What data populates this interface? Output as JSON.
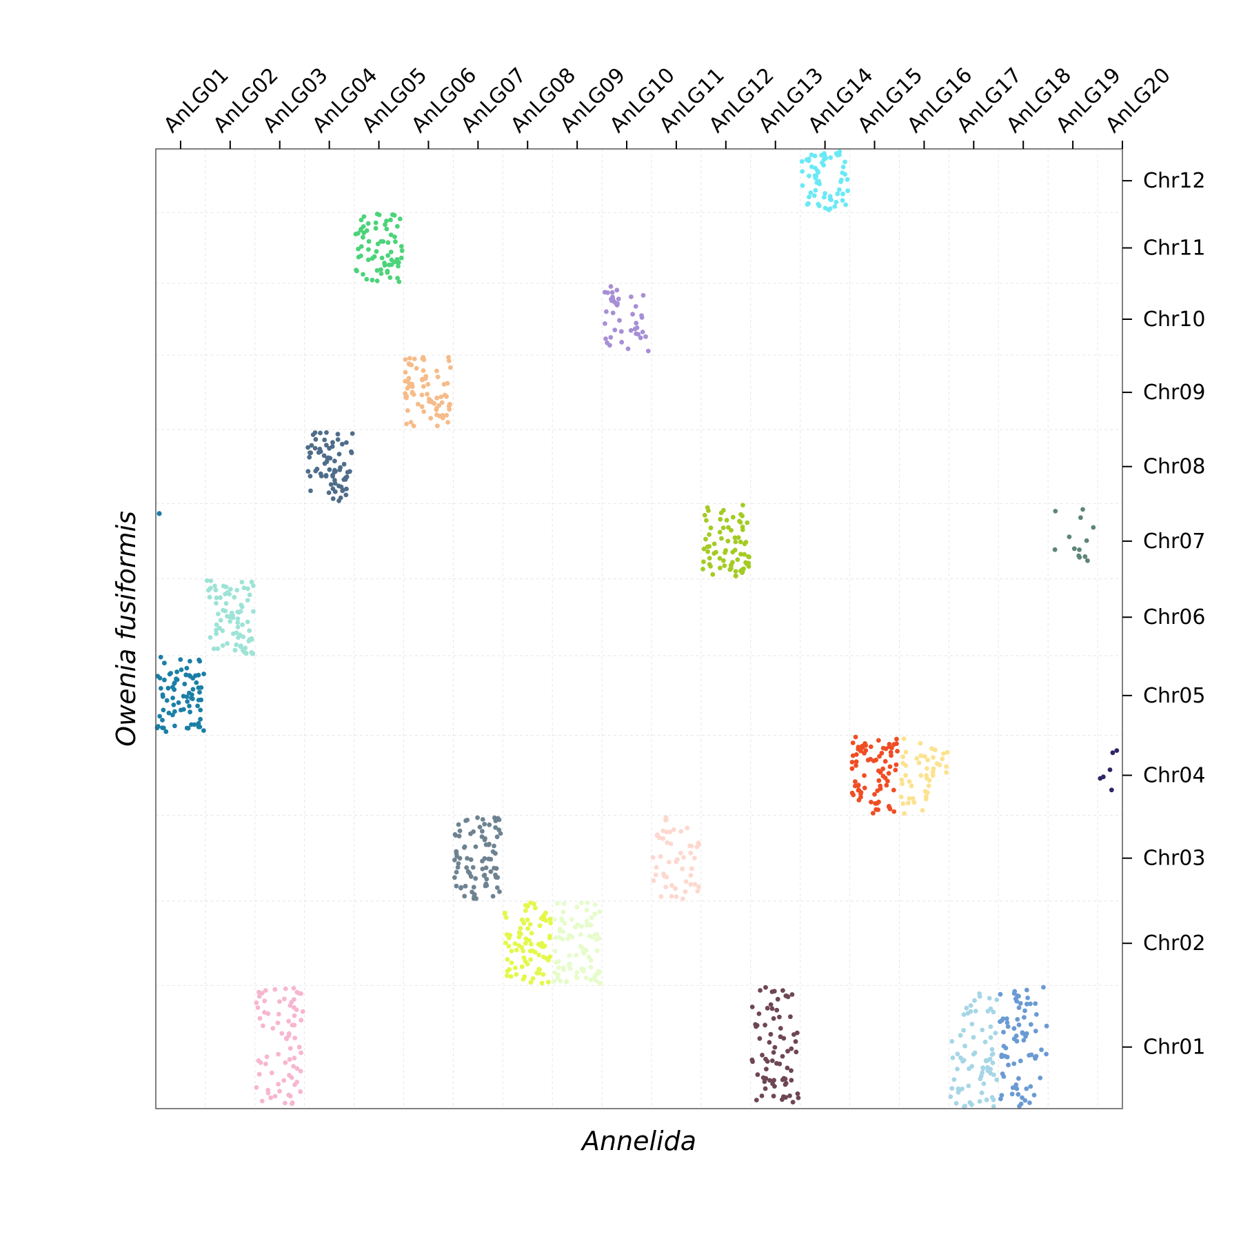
{
  "chart_data": {
    "type": "scatter",
    "title": "",
    "xlabel": "Annelida",
    "ylabel": "Owenia fusiformis",
    "x_categories": [
      "AnLG01",
      "AnLG02",
      "AnLG03",
      "AnLG04",
      "AnLG05",
      "AnLG06",
      "AnLG07",
      "AnLG08",
      "AnLG09",
      "AnLG10",
      "AnLG11",
      "AnLG12",
      "AnLG13",
      "AnLG14",
      "AnLG15",
      "AnLG16",
      "AnLG17",
      "AnLG18",
      "AnLG19",
      "AnLG20"
    ],
    "y_categories": [
      "Chr01",
      "Chr02",
      "Chr03",
      "Chr04",
      "Chr05",
      "Chr06",
      "Chr07",
      "Chr08",
      "Chr09",
      "Chr10",
      "Chr11",
      "Chr12"
    ],
    "x_axis_position": "top",
    "y_axis_position": "right",
    "grid": true,
    "legend": "none",
    "blocks": [
      {
        "x_category": "AnLG01",
        "y_category": "Chr05",
        "color": "#1a7fa6",
        "density": "high"
      },
      {
        "x_category": "AnLG02",
        "y_category": "Chr06",
        "color": "#9de3d6",
        "density": "high"
      },
      {
        "x_category": "AnLG03",
        "y_category": "Chr01",
        "color": "#f7b6d0",
        "density": "medium"
      },
      {
        "x_category": "AnLG04",
        "y_category": "Chr08",
        "color": "#4f6d8a",
        "density": "high"
      },
      {
        "x_category": "AnLG05",
        "y_category": "Chr11",
        "color": "#4cd37a",
        "density": "high"
      },
      {
        "x_category": "AnLG06",
        "y_category": "Chr09",
        "color": "#f6bb88",
        "density": "high"
      },
      {
        "x_category": "AnLG07",
        "y_category": "Chr03",
        "color": "#6e8391",
        "density": "high"
      },
      {
        "x_category": "AnLG08",
        "y_category": "Chr02",
        "color": "#e3f84a",
        "density": "high"
      },
      {
        "x_category": "AnLG09",
        "y_category": "Chr02",
        "color": "#e6fccb",
        "density": "high"
      },
      {
        "x_category": "AnLG10",
        "y_category": "Chr10",
        "color": "#a78fd6",
        "density": "medium"
      },
      {
        "x_category": "AnLG11",
        "y_category": "Chr03",
        "color": "#fdd8cf",
        "density": "medium"
      },
      {
        "x_category": "AnLG12",
        "y_category": "Chr07",
        "color": "#a4cb24",
        "density": "high"
      },
      {
        "x_category": "AnLG13",
        "y_category": "Chr01",
        "color": "#6e4654",
        "density": "medium"
      },
      {
        "x_category": "AnLG14",
        "y_category": "Chr12",
        "color": "#6ae9f5",
        "density": "high"
      },
      {
        "x_category": "AnLG15",
        "y_category": "Chr04",
        "color": "#f04d24",
        "density": "high"
      },
      {
        "x_category": "AnLG16",
        "y_category": "Chr04",
        "color": "#fce28f",
        "density": "medium"
      },
      {
        "x_category": "AnLG17",
        "y_category": "Chr01",
        "color": "#a6d6e6",
        "density": "medium"
      },
      {
        "x_category": "AnLG18",
        "y_category": "Chr01",
        "color": "#6a9ad3",
        "density": "medium"
      },
      {
        "x_category": "AnLG19",
        "y_category": "Chr07",
        "color": "#5e8576",
        "density": "low"
      },
      {
        "x_category": "AnLG20",
        "y_category": "Chr04",
        "color": "#2c2766",
        "density": "low"
      },
      {
        "x_category": "AnLG01",
        "y_category": "Chr07",
        "color": "#1a7fa6",
        "density": "single"
      }
    ]
  }
}
